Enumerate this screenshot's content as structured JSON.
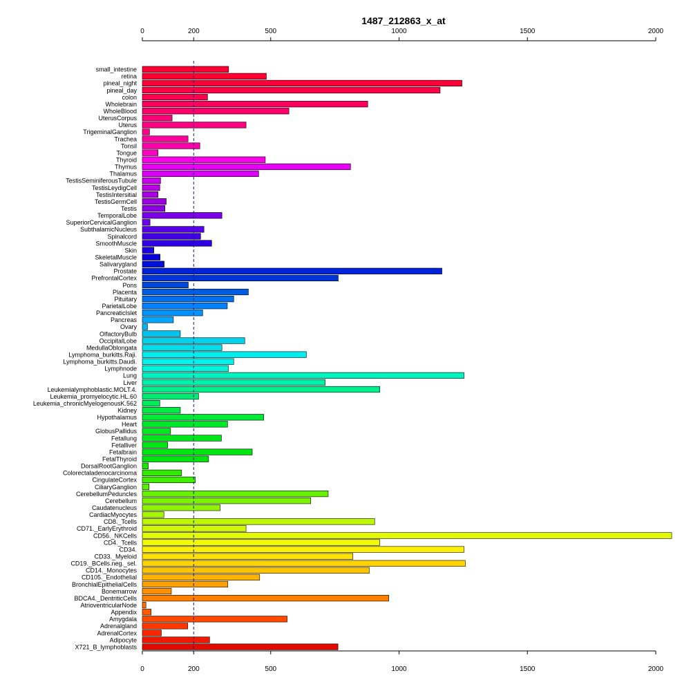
{
  "chart_data": {
    "type": "bar",
    "orientation": "horizontal",
    "title": "1487_212863_x_at",
    "xlabel": "",
    "ylabel": "",
    "xlim": [
      0,
      2000
    ],
    "x_ticks": [
      0,
      200,
      500,
      1000,
      1500,
      2000
    ],
    "reference_line": 200,
    "grid": false,
    "categories": [
      "small_intestine",
      "retina",
      "pineal_night",
      "pineal_day",
      "colon",
      "Wholebrain",
      "WholeBlood",
      "UterusCorpus",
      "Uterus",
      "TrigeminalGanglion",
      "Trachea",
      "Tonsil",
      "Tongue",
      "Thyroid",
      "Thymus",
      "Thalamus",
      "TestisSeminiferousTubule",
      "TestisLeydigCell",
      "TestisIntersitial",
      "TestisGermCell",
      "Testis",
      "TemporalLobe",
      "SuperiorCervicalGanglion",
      "SubthalamicNucleus",
      "Spinalcord",
      "SmoothMuscle",
      "Skin",
      "SkeletalMuscle",
      "Salivarygland",
      "Prostate",
      "PrefrontalCortex",
      "Pons",
      "Placenta",
      "Pituitary",
      "ParietalLobe",
      "PancreaticIslet",
      "Pancreas",
      "Ovary",
      "OlfactoryBulb",
      "OccipitalLobe",
      "MedullaOblongata",
      "Lymphoma_burkitts.Raji.",
      "Lymphoma_burkitts.Daudi.",
      "Lymphnode",
      "Lung",
      "Liver",
      "Leukemialymphoblastic.MOLT.4.",
      "Leukemia_promyelocytic.HL.60",
      "Leukemia_chronicMyelogenousK.562",
      "Kidney",
      "Hypothalamus",
      "Heart",
      "GlobusPallidus",
      "Fetallung",
      "Fetalliver",
      "Fetalbrain",
      "FetalThyroid",
      "DorsalRootGanglion",
      "Colorectaladenocarcinoma",
      "CingulateCortex",
      "CiliaryGanglion",
      "CerebellumPeduncles",
      "Cerebellum",
      "Caudatenucleus",
      "CardiacMyocytes",
      "CD8._Tcells",
      "CD71._EarlyErythroid",
      "CD56._NKCells",
      "CD4._Tcells",
      "CD34.",
      "CD33._Myeloid",
      "CD19._BCells.neg._sel.",
      "CD14._Monocytes",
      "CD105._Endothelial",
      "BronchialEpithelialCells",
      "Bonemarrow",
      "BDCA4._DentriticCells",
      "AtrioventricularNode",
      "Appendix",
      "Amygdala",
      "Adrenalgland",
      "AdrenalCortex",
      "Adipocyte",
      "X721_B_lymphoblasts"
    ],
    "values": [
      336,
      483,
      1245,
      1160,
      254,
      878,
      571,
      116,
      404,
      28,
      178,
      224,
      61,
      479,
      811,
      453,
      71,
      68,
      61,
      93,
      88,
      310,
      30,
      240,
      227,
      270,
      45,
      69,
      85,
      1167,
      763,
      179,
      413,
      356,
      331,
      235,
      121,
      20,
      148,
      399,
      310,
      639,
      356,
      335,
      1253,
      712,
      925,
      219,
      68,
      148,
      473,
      332,
      110,
      308,
      99,
      428,
      258,
      23,
      153,
      206,
      26,
      724,
      656,
      303,
      84,
      905,
      404,
      2062,
      925,
      1253,
      820,
      1258,
      884,
      457,
      333,
      113,
      960,
      14,
      34,
      564,
      177,
      74,
      262,
      762
    ],
    "colors": [
      "#FF0033",
      "#FF0031",
      "#FF0039",
      "#FF0046",
      "#FF0051",
      "#FF005F",
      "#FF006A",
      "#FF0078",
      "#FF0082",
      "#FF008E",
      "#FF009C",
      "#FF00AB",
      "#FF00C1",
      "#FA00E8",
      "#E800F5",
      "#DB00F5",
      "#C900EE",
      "#BB00E8",
      "#A800E2",
      "#9A00E0",
      "#8C00E0",
      "#7A00E5",
      "#6A00E8",
      "#5600E6",
      "#4000E3",
      "#2E00E1",
      "#1A00DE",
      "#0A00D9",
      "#0010D8",
      "#0022D8",
      "#0034D8",
      "#0048DA",
      "#005CE0",
      "#0070EE",
      "#0082FF",
      "#0092FF",
      "#00A6FF",
      "#00B5F9",
      "#00C3F1",
      "#00D2EB",
      "#00DEEB",
      "#00EDEE",
      "#00F4EC",
      "#00F6DC",
      "#00F2C1",
      "#00F0A9",
      "#00EE8E",
      "#00EC74",
      "#00EB5A",
      "#00EA46",
      "#00E935",
      "#00E82A",
      "#00E820",
      "#00E61A",
      "#00E614",
      "#00E410",
      "#00E30C",
      "#1AE600",
      "#2EEB00",
      "#40EE00",
      "#55F000",
      "#68F200",
      "#7CF400",
      "#90F500",
      "#A6F600",
      "#BDF700",
      "#D0F800",
      "#E2F900",
      "#F2FA00",
      "#FFF000",
      "#FFE200",
      "#FFD400",
      "#FFC400",
      "#FFB400",
      "#FFA200",
      "#FF9000",
      "#FF7F00",
      "#FF6E00",
      "#FF5C00",
      "#FF4A00",
      "#FF3800",
      "#FF2600",
      "#F01800",
      "#E00A00"
    ]
  }
}
